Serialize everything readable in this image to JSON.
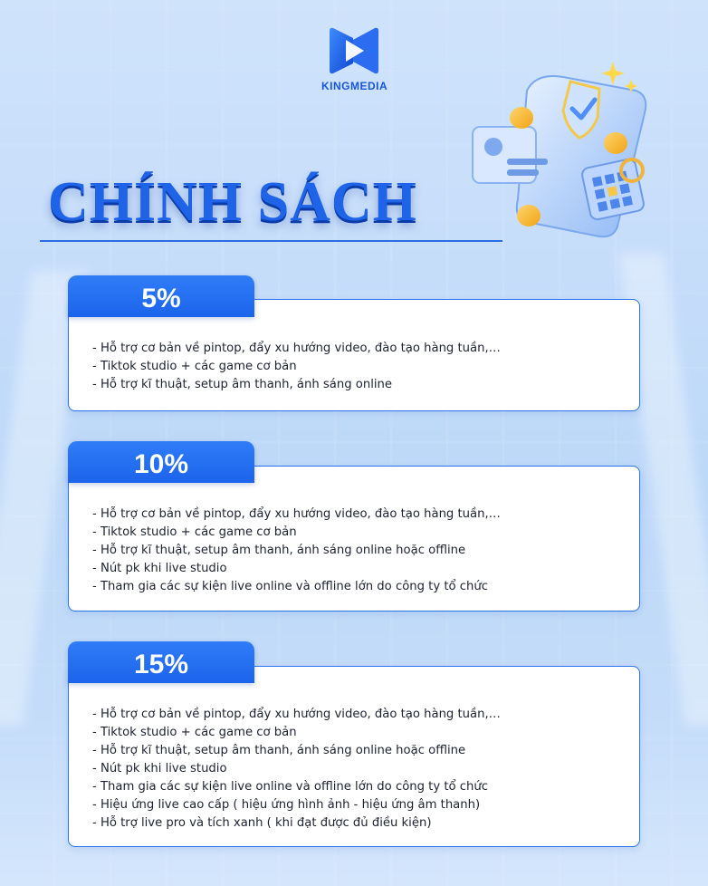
{
  "brand": {
    "name": "KINGMEDIA",
    "color": "#1a56d6"
  },
  "heading": "CHÍNH SÁCH",
  "colors": {
    "accent": "#1f63e8",
    "tab": "#2a74f5",
    "card_border": "#2b73ee"
  },
  "illustration": "policy-document-illustration",
  "plans": [
    {
      "label": "5%",
      "items": [
        "- Hỗ trợ cơ bản về pintop, đẩy xu hướng video, đào tạo hàng tuần,…",
        "- Tiktok studio + các game cơ bản",
        "- Hỗ trợ kĩ thuật, setup âm thanh, ánh sáng online"
      ]
    },
    {
      "label": "10%",
      "items": [
        "- Hỗ trợ cơ bản về pintop, đẩy xu hướng video, đào tạo hàng tuần,…",
        "- Tiktok studio + các game cơ bản",
        "- Hỗ trợ kĩ thuật, setup âm thanh, ánh sáng online hoặc offline",
        "- Nút pk khi live studio",
        "- Tham gia các sự kiện live online và offline lớn do công ty tổ chức"
      ]
    },
    {
      "label": "15%",
      "items": [
        "- Hỗ trợ cơ bản về pintop, đẩy xu hướng video, đào tạo hàng tuần,…",
        "- Tiktok studio + các game cơ bản",
        "- Hỗ trợ kĩ thuật, setup âm thanh, ánh sáng online hoặc offline",
        "- Nút pk khi live studio",
        "- Tham gia các sự kiện live online và offline lớn do công ty tổ chức",
        "- Hiệu ứng live cao cấp ( hiệu ứng hình ảnh - hiệu ứng âm thanh)",
        "- Hỗ trợ live pro và tích xanh ( khi đạt được đủ điều kiện)"
      ]
    }
  ]
}
